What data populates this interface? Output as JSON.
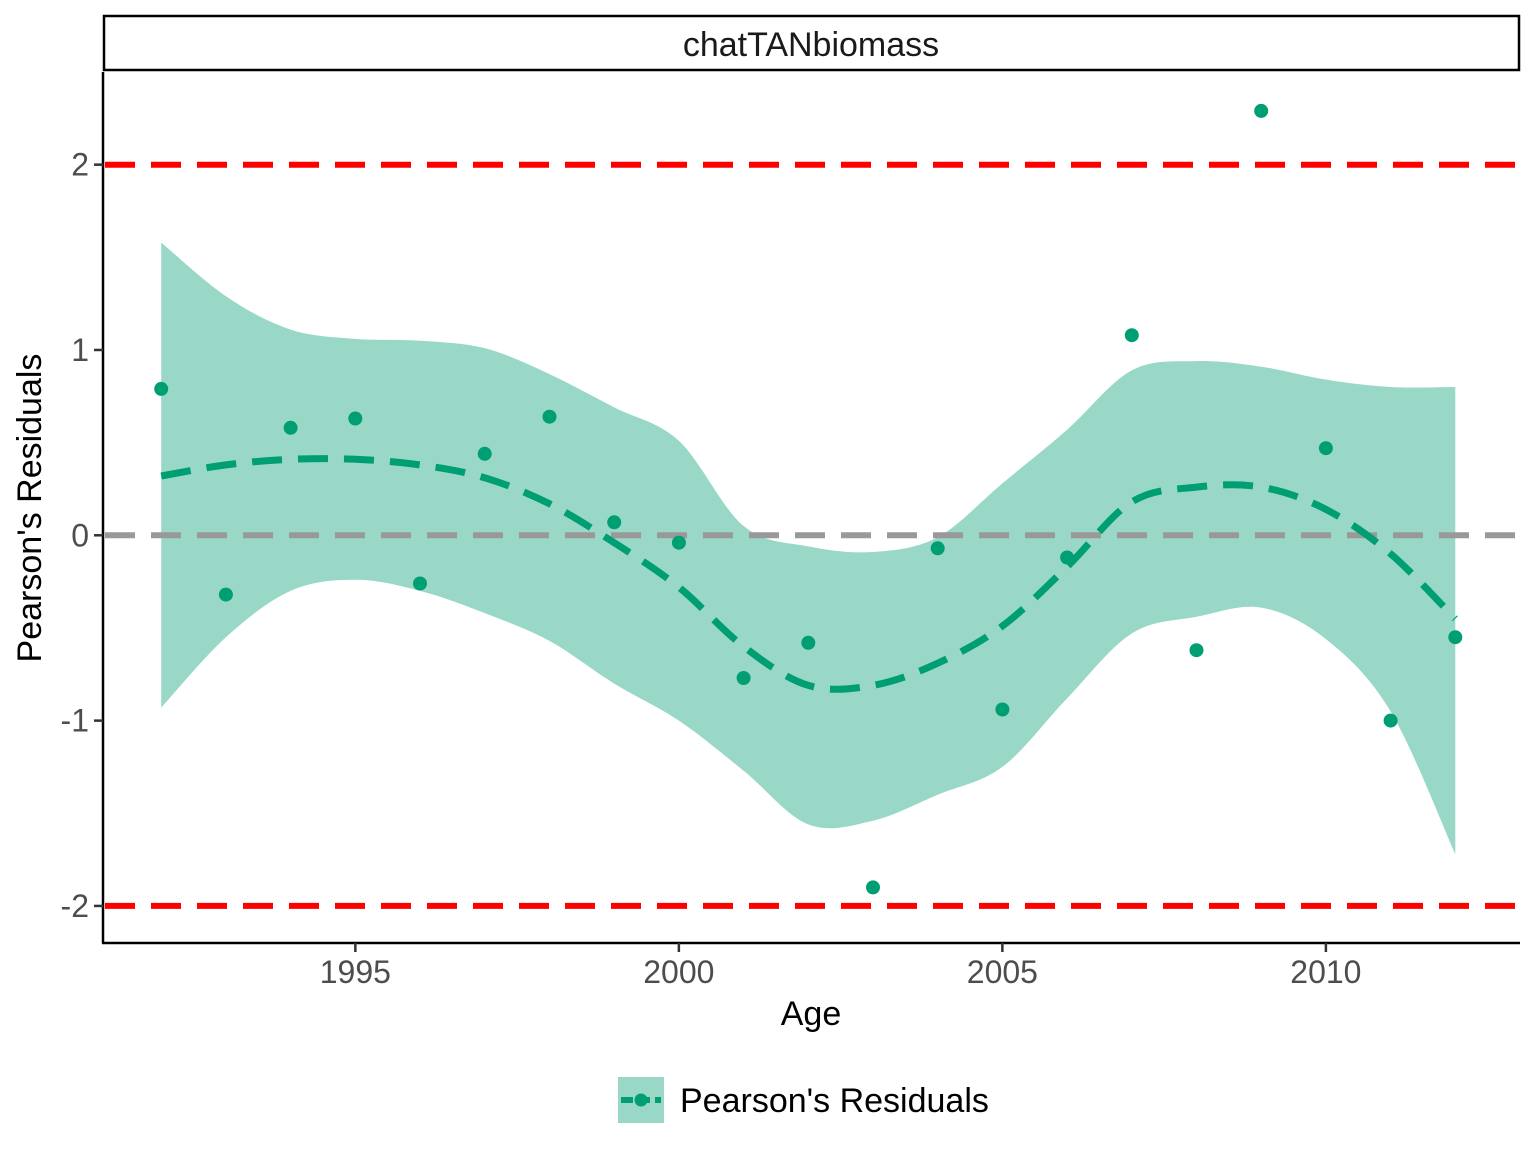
{
  "chart_data": {
    "type": "scatter",
    "facet_title": "chatTANbiomass",
    "xlabel": "Age",
    "ylabel": "Pearson's Residuals",
    "xlim": [
      1991.1,
      2013.0
    ],
    "ylim": [
      -2.2,
      2.5
    ],
    "x_ticks": [
      1995,
      2000,
      2005,
      2010
    ],
    "y_ticks": [
      -2,
      -1,
      0,
      1,
      2
    ],
    "x_tick_labels": [
      "1995",
      "2000",
      "2005",
      "2010"
    ],
    "y_tick_labels": [
      "-2",
      "-1",
      "0",
      "1",
      "2"
    ],
    "grid": false,
    "legend_position": "bottom",
    "legend_label": "Pearson's Residuals",
    "reference_lines": [
      {
        "y": 2,
        "color": "#ff0000",
        "style": "dashed"
      },
      {
        "y": 0,
        "color": "#999999",
        "style": "dashed"
      },
      {
        "y": -2,
        "color": "#ff0000",
        "style": "dashed"
      }
    ],
    "series": [
      {
        "name": "Pearson's Residuals",
        "color": "#009e73",
        "points": {
          "x": [
            1992,
            1993,
            1994,
            1995,
            1996,
            1997,
            1998,
            1999,
            2000,
            2001,
            2002,
            2003,
            2004,
            2005,
            2006,
            2007,
            2008,
            2009,
            2010,
            2011,
            2012
          ],
          "y": [
            0.79,
            -0.32,
            0.58,
            0.63,
            -0.26,
            0.44,
            0.64,
            0.07,
            -0.04,
            -0.77,
            -0.58,
            -1.9,
            -0.07,
            -0.94,
            -0.12,
            1.08,
            -0.62,
            2.29,
            0.47,
            -1.0,
            -0.55
          ]
        },
        "smooth": {
          "x": [
            1992,
            1993,
            1994,
            1995,
            1996,
            1997,
            1998,
            1999,
            2000,
            2001,
            2002,
            2003,
            2004,
            2005,
            2006,
            2007,
            2008,
            2009,
            2010,
            2011,
            2012
          ],
          "fit": [
            0.32,
            0.38,
            0.41,
            0.41,
            0.38,
            0.31,
            0.17,
            -0.04,
            -0.28,
            -0.6,
            -0.81,
            -0.81,
            -0.69,
            -0.49,
            -0.17,
            0.18,
            0.26,
            0.26,
            0.14,
            -0.1,
            -0.45
          ],
          "lower": [
            -0.93,
            -0.55,
            -0.3,
            -0.24,
            -0.3,
            -0.42,
            -0.57,
            -0.8,
            -1.0,
            -1.27,
            -1.56,
            -1.54,
            -1.4,
            -1.25,
            -0.88,
            -0.53,
            -0.44,
            -0.39,
            -0.56,
            -0.95,
            -1.72
          ],
          "upper": [
            1.58,
            1.29,
            1.11,
            1.06,
            1.05,
            1.01,
            0.87,
            0.69,
            0.51,
            0.05,
            -0.06,
            -0.09,
            -0.01,
            0.28,
            0.57,
            0.89,
            0.94,
            0.91,
            0.84,
            0.8,
            0.8
          ]
        }
      }
    ]
  }
}
